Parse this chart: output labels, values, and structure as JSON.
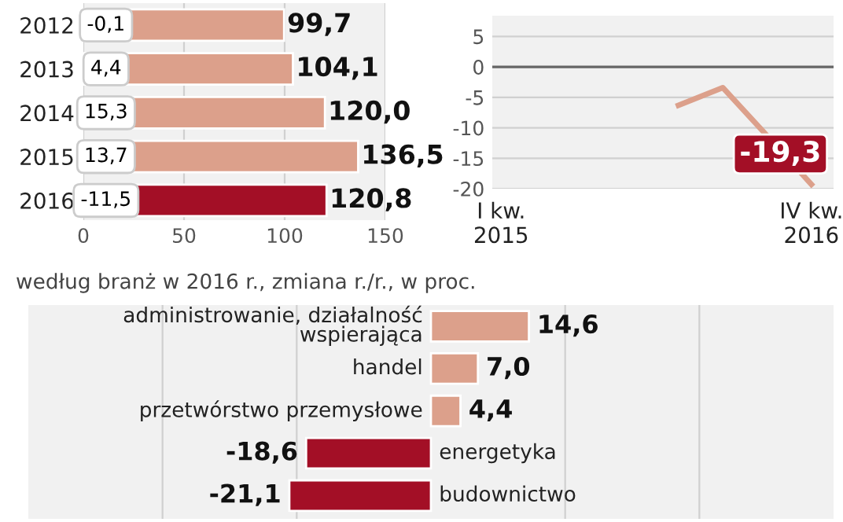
{
  "chart_data": [
    {
      "type": "bar",
      "orientation": "horizontal",
      "categories": [
        "2012",
        "2013",
        "2014",
        "2015",
        "2016"
      ],
      "values": [
        99.7,
        104.1,
        120.0,
        136.5,
        120.8
      ],
      "colors": [
        "#dca08b",
        "#dca08b",
        "#dca08b",
        "#dca08b",
        "#a30f26"
      ],
      "value_labels": [
        "99,7",
        "104,1",
        "120,0",
        "136,5",
        "120,8"
      ],
      "annotations": [
        "-0,1",
        "4,4",
        "15,3",
        "13,7",
        "-11,5"
      ],
      "xlim": [
        0,
        150
      ],
      "xticks": [
        0,
        50,
        100,
        150
      ],
      "grid": "x"
    },
    {
      "type": "line",
      "categories": [
        "I kw.\n2015",
        null,
        null,
        null,
        null,
        null,
        null,
        "IV kw.\n2016"
      ],
      "series": [
        {
          "color": "#dca08b",
          "values": [
            null,
            null,
            null,
            null,
            -6.3,
            -3.4,
            -11.3,
            -19.3
          ]
        }
      ],
      "value_labels": [
        null,
        null,
        null,
        null,
        null,
        null,
        null,
        "-19,3"
      ],
      "ylim": [
        -20,
        8.4
      ],
      "yticks": [
        -20,
        -15,
        -10,
        -5,
        0,
        5
      ],
      "grid": "y"
    },
    {
      "type": "bar",
      "orientation": "horizontal",
      "title": "według branż w 2016 r., zmiana r./r., w proc.",
      "categories": [
        "administrowanie, działalność\nwspierająca",
        "handel",
        "przetwórstwo przemysłowe",
        "energetyka",
        "budownictwo"
      ],
      "values": [
        14.6,
        7.0,
        4.4,
        -18.6,
        -21.1
      ],
      "colors": [
        "#dca08b",
        "#dca08b",
        "#dca08b",
        "#a30f26",
        "#a30f26"
      ],
      "value_labels": [
        "14,6",
        "7,0",
        "4,4",
        "-18,6",
        "-21,1"
      ],
      "xlim": [
        -60,
        60
      ],
      "xticks": [
        {
          "value": -40,
          "label": null
        },
        {
          "value": -20,
          "label": null
        },
        {
          "value": 20,
          "label": null
        },
        {
          "value": 40,
          "label": null
        }
      ],
      "grid": "x"
    }
  ]
}
